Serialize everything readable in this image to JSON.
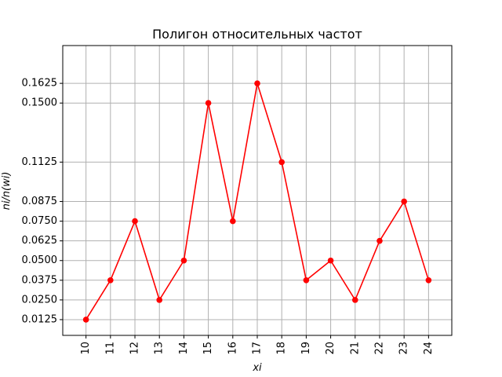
{
  "chart_data": {
    "type": "line",
    "title": "Полигон относительных частот",
    "xlabel": "xi",
    "ylabel": "ni/n(wi)",
    "x": [
      10,
      11,
      12,
      13,
      14,
      15,
      16,
      17,
      18,
      19,
      20,
      21,
      22,
      23,
      24
    ],
    "y": [
      0.0125,
      0.0375,
      0.075,
      0.025,
      0.05,
      0.15,
      0.075,
      0.1625,
      0.1125,
      0.0375,
      0.05,
      0.025,
      0.0625,
      0.0875,
      0.0375
    ],
    "xticks": [
      "10",
      "11",
      "12",
      "13",
      "14",
      "15",
      "16",
      "17",
      "18",
      "19",
      "20",
      "21",
      "22",
      "23",
      "24"
    ],
    "yticks": [
      {
        "value": 0.0125,
        "label": "0.0125"
      },
      {
        "value": 0.025,
        "label": "0.0250"
      },
      {
        "value": 0.0375,
        "label": "0.0375"
      },
      {
        "value": 0.05,
        "label": "0.0500"
      },
      {
        "value": 0.0625,
        "label": "0.0625"
      },
      {
        "value": 0.075,
        "label": "0.0750"
      },
      {
        "value": 0.0875,
        "label": "0.0875"
      },
      {
        "value": 0.1125,
        "label": "0.1125"
      },
      {
        "value": 0.15,
        "label": "0.1500"
      },
      {
        "value": 0.1625,
        "label": "0.1625"
      }
    ],
    "xlim": [
      9.05,
      24.95
    ],
    "ylim": [
      0.0025,
      0.1865
    ],
    "grid": true,
    "line_color": "#ff0000",
    "marker": "circle"
  }
}
